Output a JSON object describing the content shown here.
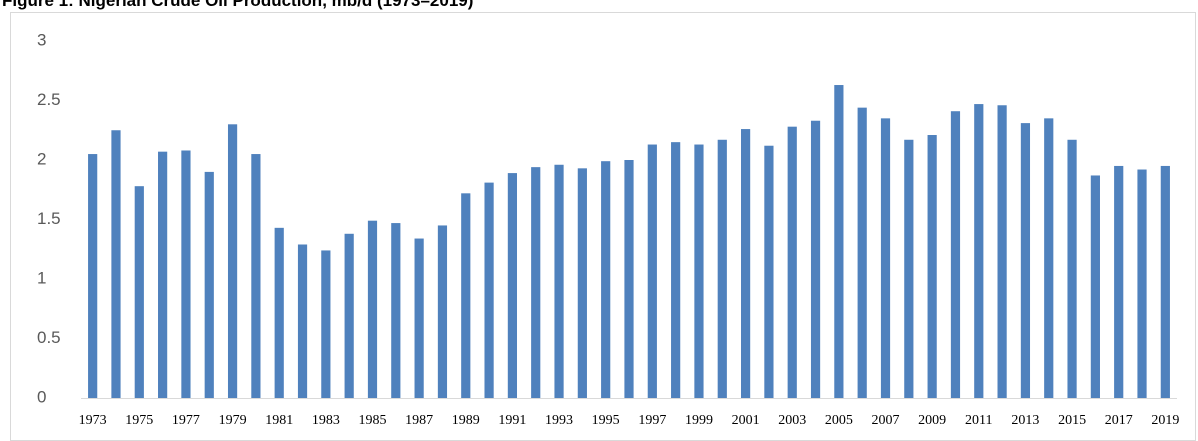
{
  "chart_data": {
    "type": "bar",
    "title": "Figure 1: Nigerian Crude Oil Production, mb/d (1973–2019)",
    "categories": [
      "1973",
      null,
      "1975",
      null,
      "1977",
      null,
      "1979",
      null,
      "1981",
      null,
      "1983",
      null,
      "1985",
      null,
      "1987",
      null,
      "1989",
      null,
      "1991",
      null,
      "1993",
      null,
      "1995",
      null,
      "1997",
      null,
      "1999",
      null,
      "2001",
      null,
      "2003",
      null,
      "2005",
      null,
      "2007",
      null,
      "2009",
      null,
      "2011",
      null,
      "2013",
      null,
      "2015",
      null,
      "2017",
      null,
      "2019"
    ],
    "values": [
      2.05,
      2.25,
      1.78,
      2.07,
      2.08,
      1.9,
      2.3,
      2.05,
      1.43,
      1.29,
      1.24,
      1.38,
      1.49,
      1.47,
      1.34,
      1.45,
      1.72,
      1.81,
      1.89,
      1.94,
      1.96,
      1.93,
      1.99,
      2.0,
      2.13,
      2.15,
      2.13,
      2.17,
      2.26,
      2.12,
      2.28,
      2.33,
      2.63,
      2.44,
      2.35,
      2.17,
      2.21,
      2.41,
      2.47,
      2.46,
      2.31,
      2.35,
      2.17,
      1.87,
      1.95,
      1.92,
      1.95
    ],
    "color": "#4f81bd",
    "ylim": [
      0,
      3
    ],
    "yticks": [
      0,
      0.5,
      1,
      1.5,
      2,
      2.5,
      3
    ],
    "grid": false
  }
}
